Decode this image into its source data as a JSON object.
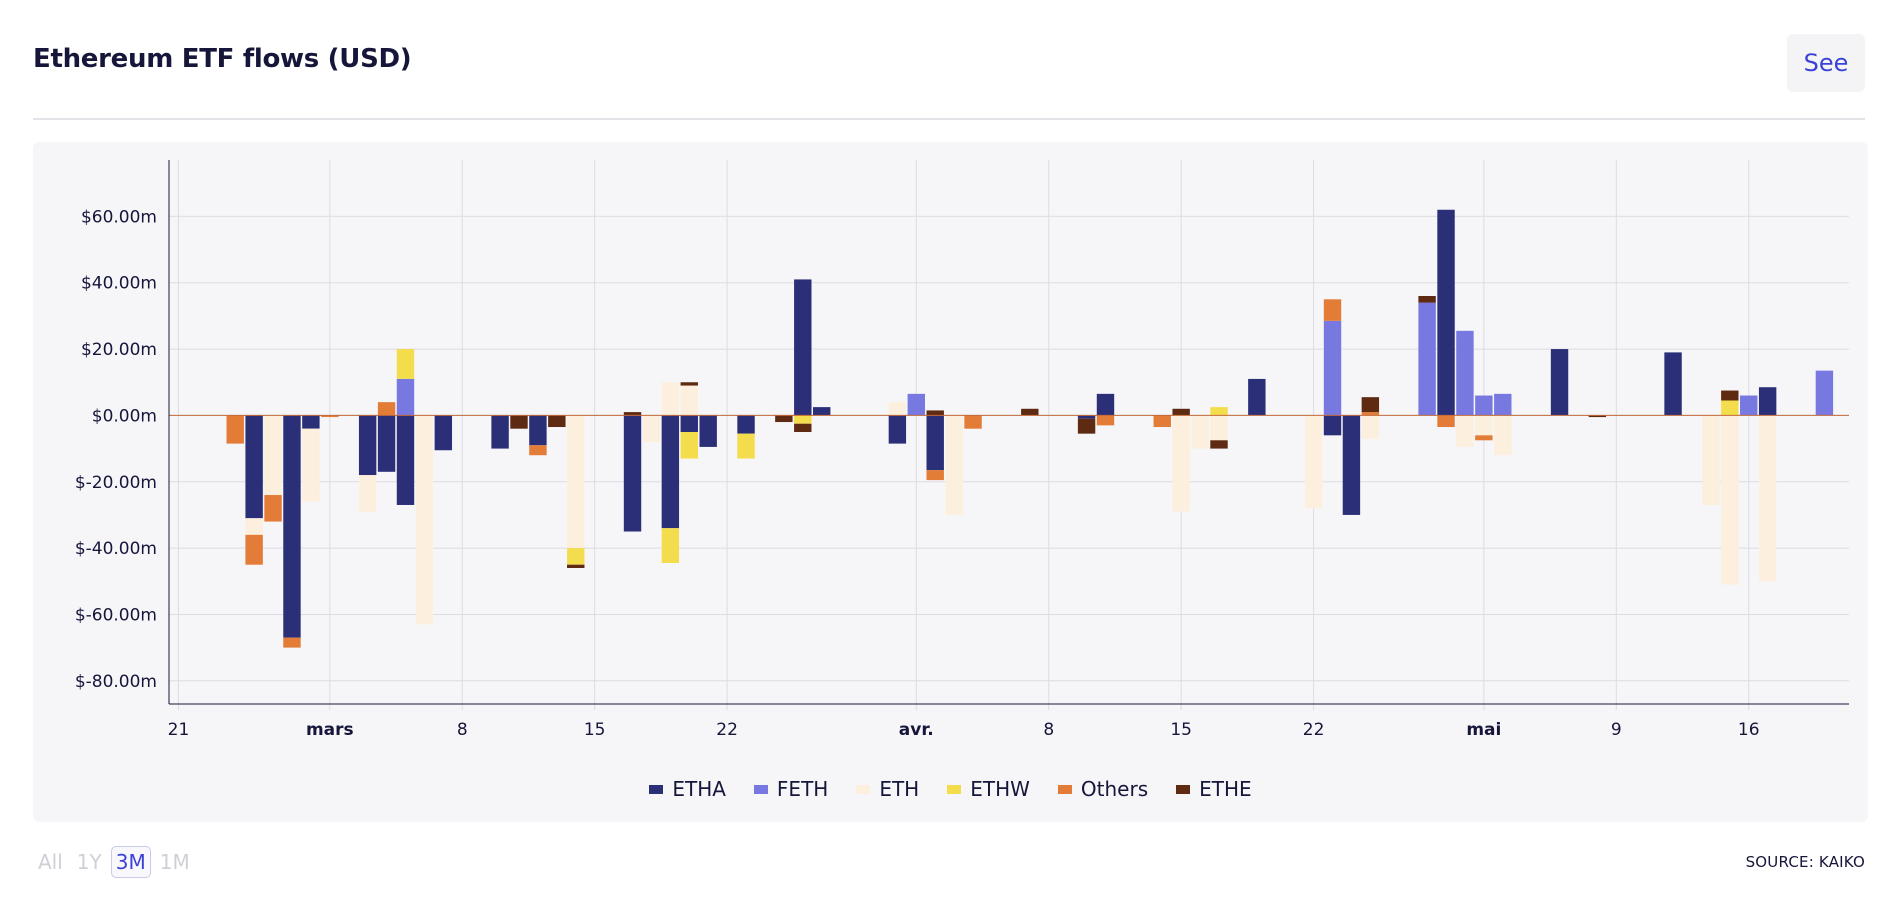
{
  "header": {
    "title": "Ethereum ETF flows (USD)",
    "see_label": "See"
  },
  "footer": {
    "ranges": [
      "All",
      "1Y",
      "3M",
      "1M"
    ],
    "active_range": "3M",
    "source": "SOURCE: KAIKO"
  },
  "colors": {
    "ETHA": "#2b2f78",
    "FETH": "#7779e0",
    "ETH": "#fcefdd",
    "ETHW": "#f4dd4c",
    "Others": "#e37c37",
    "ETHE": "#5e2a12",
    "grid": "#dcdce2",
    "axis": "#15163a"
  },
  "chart_data": {
    "type": "bar",
    "stacked": true,
    "title": "Ethereum ETF flows (USD)",
    "xlabel": "",
    "ylabel": "",
    "ylim": [
      -87,
      77
    ],
    "yticks": [
      60,
      40,
      20,
      0,
      -20,
      -40,
      -60,
      -80
    ],
    "ytick_labels": [
      "$60.00m",
      "$40.00m",
      "$20.00m",
      "$0.00m",
      "$-20.00m",
      "$-40.00m",
      "$-60.00m",
      "$-80.00m"
    ],
    "x_range": [
      -0.5,
      88.3
    ],
    "xticks": [
      {
        "pos": 0,
        "label": "21",
        "bold": false
      },
      {
        "pos": 8,
        "label": "mars",
        "bold": true
      },
      {
        "pos": 15,
        "label": "8",
        "bold": false
      },
      {
        "pos": 22,
        "label": "15",
        "bold": false
      },
      {
        "pos": 29,
        "label": "22",
        "bold": false
      },
      {
        "pos": 39,
        "label": "avr.",
        "bold": true
      },
      {
        "pos": 46,
        "label": "8",
        "bold": false
      },
      {
        "pos": 53,
        "label": "15",
        "bold": false
      },
      {
        "pos": 60,
        "label": "22",
        "bold": false
      },
      {
        "pos": 69,
        "label": "mai",
        "bold": true
      },
      {
        "pos": 76,
        "label": "9",
        "bold": false
      },
      {
        "pos": 83,
        "label": "16",
        "bold": false
      }
    ],
    "legend": [
      "ETHA",
      "FETH",
      "ETH",
      "ETHW",
      "Others",
      "ETHE"
    ],
    "legend_position": "bottom",
    "grid": true,
    "flows": [
      {
        "x": 3,
        "Others": -8.5
      },
      {
        "x": 4,
        "ETHA": -31,
        "ETH": -5,
        "Others": -9
      },
      {
        "x": 5,
        "ETH": -24,
        "Others": -8
      },
      {
        "x": 6,
        "ETHA": -67,
        "Others": -3
      },
      {
        "x": 7,
        "ETHA": -4,
        "ETH": -22
      },
      {
        "x": 8,
        "Others": -0.5
      },
      {
        "x": 10,
        "ETHA": -18,
        "ETH": -11
      },
      {
        "x": 11,
        "ETHA": -17,
        "Others": 4
      },
      {
        "x": 12,
        "ETHA": -27,
        "FETH": 11,
        "ETHW": 9
      },
      {
        "x": 13,
        "ETH": -63
      },
      {
        "x": 14,
        "ETHA": -10.5
      },
      {
        "x": 17,
        "ETHA": -10
      },
      {
        "x": 18,
        "ETHE": -4
      },
      {
        "x": 19,
        "ETHA": -9,
        "Others": -3
      },
      {
        "x": 20,
        "ETHE": -3.5
      },
      {
        "x": 21,
        "ETH": -40,
        "ETHW": -5,
        "ETHE": -1
      },
      {
        "x": 24,
        "ETHA": -35,
        "ETHE": 1
      },
      {
        "x": 25,
        "ETH": -8
      },
      {
        "x": 26,
        "ETHA": -34,
        "ETHW": -10.5,
        "ETH": 10
      },
      {
        "x": 27,
        "ETHA": -5,
        "ETHW": -8,
        "ETH": 9,
        "ETHE": 1
      },
      {
        "x": 28,
        "ETHA": -9.5
      },
      {
        "x": 30,
        "ETHA": -5.5,
        "ETHW": -7.5
      },
      {
        "x": 32,
        "ETHE": -2
      },
      {
        "x": 33,
        "ETHA": 41,
        "ETHW": -2.5,
        "ETHE": -2.5
      },
      {
        "x": 34,
        "ETHA": 2.5
      },
      {
        "x": 38,
        "ETHA": -8.5,
        "ETH": 4
      },
      {
        "x": 39,
        "FETH": 6.5
      },
      {
        "x": 40,
        "ETHA": -16.5,
        "Others": -3,
        "ETHE": 1.5
      },
      {
        "x": 41,
        "ETH": -30
      },
      {
        "x": 42,
        "Others": -4
      },
      {
        "x": 45,
        "ETHE": 2
      },
      {
        "x": 48,
        "ETHA": -1,
        "ETHE": -4.5
      },
      {
        "x": 49,
        "ETHA": 6.5,
        "Others": -3
      },
      {
        "x": 52,
        "Others": -3.5
      },
      {
        "x": 53,
        "ETHE": 2,
        "ETH": -29
      },
      {
        "x": 54,
        "ETH": -10
      },
      {
        "x": 55,
        "ETHE": -2.5,
        "ETHW": 2.5,
        "ETH": -7.5
      },
      {
        "x": 57,
        "ETHA": 11
      },
      {
        "x": 60,
        "ETH": -28
      },
      {
        "x": 61,
        "ETHA": -6,
        "Others": 6.5,
        "FETH": 28.5
      },
      {
        "x": 62,
        "ETHA": -30
      },
      {
        "x": 63,
        "ETHE": 4.5,
        "Others": 1,
        "ETH": -7
      },
      {
        "x": 66,
        "ETHE": 2,
        "FETH": 34
      },
      {
        "x": 67,
        "ETHA": 62,
        "Others": -3.5
      },
      {
        "x": 68,
        "FETH": 25.5,
        "ETH": -9.5
      },
      {
        "x": 69,
        "FETH": 6,
        "Others": -1.5,
        "ETH": -6
      },
      {
        "x": 70,
        "FETH": 6.5,
        "ETH": -12
      },
      {
        "x": 73,
        "ETHA": 20
      },
      {
        "x": 75,
        "ETHE": -0.5
      },
      {
        "x": 79,
        "ETHA": 19
      },
      {
        "x": 81,
        "ETH": -27
      },
      {
        "x": 82,
        "ETHE": 3,
        "ETHW": 4.5,
        "ETH": -51
      },
      {
        "x": 83,
        "FETH": 6
      },
      {
        "x": 84,
        "ETHA": 8.5,
        "ETH": -50
      },
      {
        "x": 87,
        "FETH": 13.5
      }
    ]
  }
}
